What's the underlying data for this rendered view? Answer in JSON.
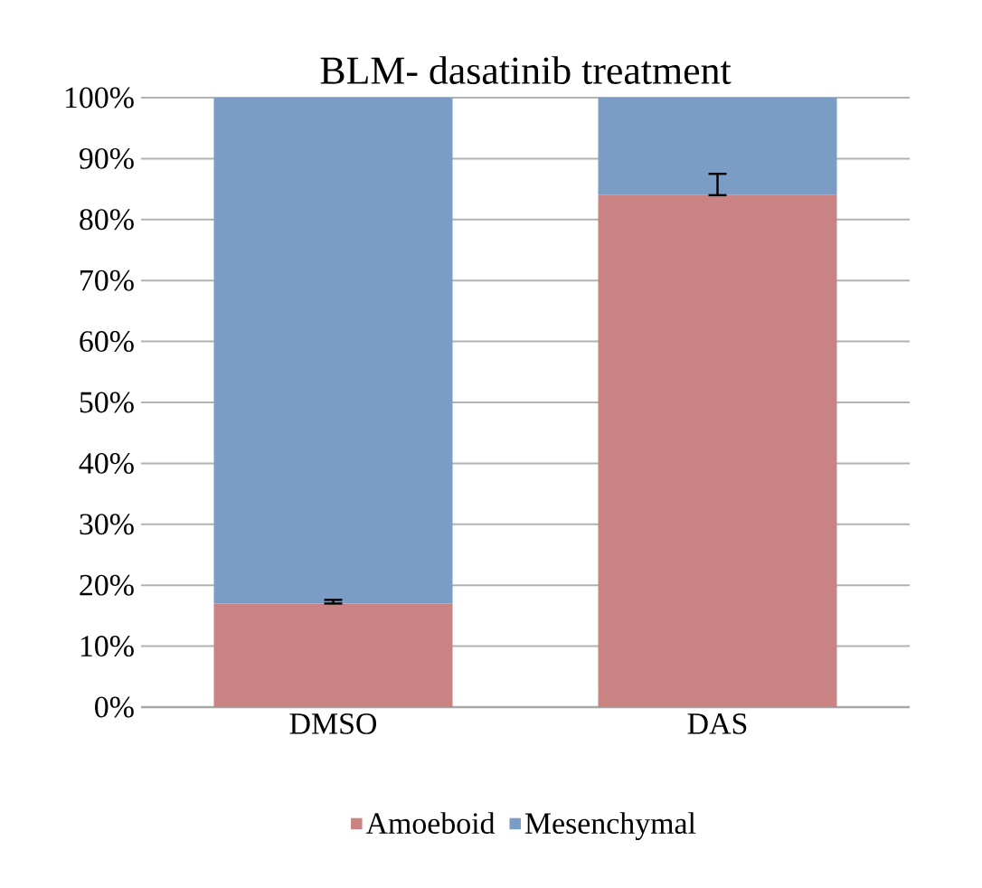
{
  "chart_data": {
    "type": "bar",
    "title": "BLM- dasatinib treatment",
    "stacked": true,
    "categories": [
      "DMSO",
      "DAS"
    ],
    "series": [
      {
        "name": "Amoeboid",
        "color": "#c98383",
        "values": [
          17,
          84
        ],
        "errors": [
          [
            17,
            17.6
          ],
          [
            84,
            87.5
          ]
        ]
      },
      {
        "name": "Mesenchymal",
        "color": "#7b9cc4",
        "values": [
          83,
          16
        ]
      }
    ],
    "ylim": [
      0,
      100
    ],
    "yticks": [
      {
        "value": 0,
        "label": "0%"
      },
      {
        "value": 10,
        "label": "10%"
      },
      {
        "value": 20,
        "label": "20%"
      },
      {
        "value": 30,
        "label": "30%"
      },
      {
        "value": 40,
        "label": "40%"
      },
      {
        "value": 50,
        "label": "50%"
      },
      {
        "value": 60,
        "label": "60%"
      },
      {
        "value": 70,
        "label": "70%"
      },
      {
        "value": 80,
        "label": "80%"
      },
      {
        "value": 90,
        "label": "90%"
      },
      {
        "value": 100,
        "label": "100%"
      }
    ],
    "grid": "y",
    "legend": "bottom"
  }
}
